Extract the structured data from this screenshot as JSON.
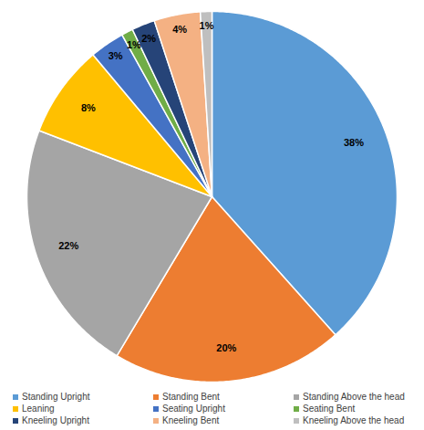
{
  "chart_data": {
    "type": "pie",
    "categories": [
      "Standing Upright",
      "Standing Bent",
      "Standing Above the head",
      "Leaning",
      "Seating Upright",
      "Seating Bent",
      "Kneeling Upright",
      "Kneeling Bent",
      "Kneeling Above the head"
    ],
    "values": [
      38,
      20,
      22,
      8,
      3,
      1,
      2,
      4,
      1
    ],
    "value_labels": [
      "38%",
      "20%",
      "22%",
      "8%",
      "3%",
      "1%",
      "2%",
      "4%",
      "1%"
    ],
    "colors": [
      "#5B9BD5",
      "#ED7D31",
      "#A5A5A5",
      "#FFC000",
      "#4472C4",
      "#70AD47",
      "#264478",
      "#F4B183",
      "#BFBFBF"
    ],
    "data_labels": true,
    "legend": "bottom"
  }
}
